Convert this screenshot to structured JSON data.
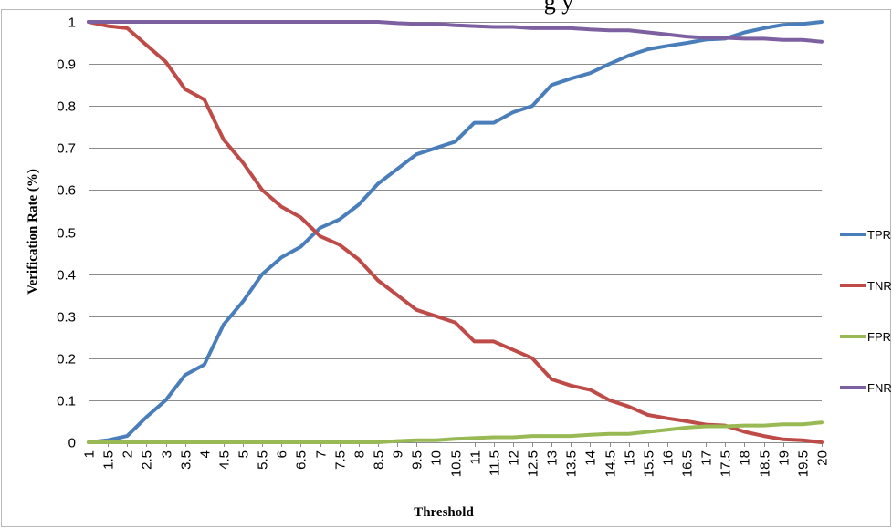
{
  "title_fragment": "g         y",
  "chart_data": {
    "type": "line",
    "title": "",
    "xlabel": "Threshold",
    "ylabel": "Verification Rate (%)",
    "ylim": [
      0,
      1
    ],
    "yticks": [
      "0",
      "0.1",
      "0.2",
      "0.3",
      "0.4",
      "0.5",
      "0.6",
      "0.7",
      "0.8",
      "0.9",
      "1"
    ],
    "grid": true,
    "legend": "right",
    "x": [
      "1",
      "1.5",
      "2",
      "2.5",
      "3",
      "3.5",
      "4",
      "4.5",
      "5",
      "5.5",
      "6",
      "6.5",
      "7",
      "7.5",
      "8",
      "8.5",
      "9",
      "9.5",
      "10",
      "10.5",
      "11",
      "11.5",
      "12",
      "12.5",
      "13",
      "13.5",
      "14",
      "14.5",
      "15",
      "15.5",
      "16",
      "16.5",
      "17",
      "17.5",
      "18",
      "18.5",
      "19",
      "19.5",
      "20"
    ],
    "series": [
      {
        "name": "TPR",
        "color": "#4a7ebb",
        "values": [
          0,
          0.005,
          0.015,
          0.06,
          0.1,
          0.16,
          0.185,
          0.28,
          0.335,
          0.4,
          0.44,
          0.465,
          0.51,
          0.53,
          0.565,
          0.615,
          0.65,
          0.685,
          0.7,
          0.715,
          0.76,
          0.76,
          0.785,
          0.8,
          0.85,
          0.865,
          0.878,
          0.9,
          0.92,
          0.935,
          0.943,
          0.95,
          0.958,
          0.96,
          0.975,
          0.985,
          0.993,
          0.995,
          1.0
        ]
      },
      {
        "name": "TNR",
        "color": "#be4b48",
        "values": [
          1.0,
          0.99,
          0.985,
          0.945,
          0.905,
          0.84,
          0.815,
          0.72,
          0.665,
          0.6,
          0.56,
          0.535,
          0.49,
          0.47,
          0.435,
          0.385,
          0.35,
          0.315,
          0.3,
          0.285,
          0.24,
          0.24,
          0.22,
          0.2,
          0.15,
          0.135,
          0.125,
          0.1,
          0.085,
          0.065,
          0.057,
          0.05,
          0.042,
          0.04,
          0.025,
          0.015,
          0.007,
          0.005,
          0.0
        ]
      },
      {
        "name": "FPR",
        "color": "#98b954",
        "values": [
          0,
          0,
          0,
          0,
          0,
          0,
          0,
          0,
          0,
          0,
          0,
          0,
          0,
          0,
          0,
          0,
          0.003,
          0.005,
          0.005,
          0.008,
          0.01,
          0.012,
          0.012,
          0.015,
          0.015,
          0.015,
          0.018,
          0.02,
          0.02,
          0.025,
          0.03,
          0.035,
          0.038,
          0.038,
          0.04,
          0.04,
          0.043,
          0.043,
          0.047
        ]
      },
      {
        "name": "FNR",
        "color": "#7d60a0",
        "values": [
          1.0,
          1.0,
          1.0,
          1.0,
          1.0,
          1.0,
          1.0,
          1.0,
          1.0,
          1.0,
          1.0,
          1.0,
          1.0,
          1.0,
          1.0,
          1.0,
          0.997,
          0.995,
          0.995,
          0.992,
          0.99,
          0.988,
          0.988,
          0.985,
          0.985,
          0.985,
          0.982,
          0.98,
          0.98,
          0.975,
          0.97,
          0.965,
          0.962,
          0.962,
          0.96,
          0.96,
          0.957,
          0.957,
          0.953
        ]
      }
    ]
  }
}
